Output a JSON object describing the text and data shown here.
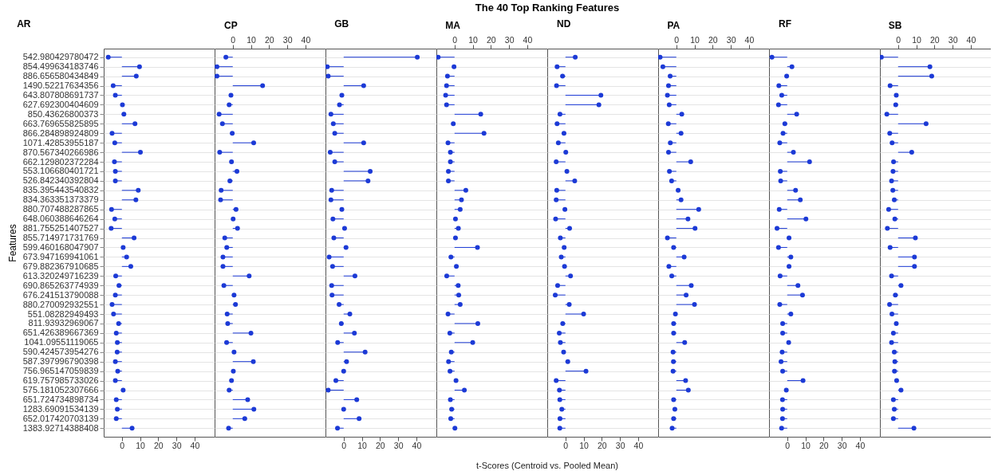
{
  "chart_data": [
    {
      "type": "lollipop",
      "orientation": "horizontal",
      "title": "AR",
      "ylabel": "Features",
      "annotations": [
        "The 40 Top Ranking Features"
      ],
      "grid": "y",
      "marker": "circle",
      "xlim": [
        -10,
        51
      ],
      "xticks": [
        0,
        10,
        20,
        30,
        40
      ],
      "categories": [
        "542.980429780472",
        "854.499634183746",
        "886.656580434849",
        "1490.52217634356",
        "643.807808691737",
        "627.692300404609",
        "850.43626800373",
        "663.769655825895",
        "866.284898924809",
        "1071.42853955187",
        "870.567340266986",
        "662.129802372284",
        "553.106680401721",
        "526.842340392804",
        "835.395443540832",
        "834.363351373379",
        "880.707488287865",
        "648.060388646264",
        "881.755251407527",
        "855.714971731769",
        "599.460168047907",
        "673.947169941061",
        "679.882367910685",
        "613.320249716239",
        "690.865263774939",
        "676.241513790088",
        "880.270092932551",
        "551.08282949493",
        "811.93932969067",
        "651.426389667369",
        "1041.09551119065",
        "590.424573954276",
        "587.397996790398",
        "756.965147059839",
        "619.757985733026",
        "575.181052307666",
        "651.724734898734",
        "1283.69091534139",
        "652.017420703139",
        "1383.92714388408"
      ],
      "series": [
        {
          "color": "#1c3ad6",
          "values": [
            -7.5,
            9.7,
            7.9,
            -4.8,
            -3.6,
            0.3,
            1.1,
            7.2,
            -5.4,
            -3.9,
            10.2,
            -4.1,
            -3.6,
            -3.6,
            9.0,
            7.7,
            -5.7,
            -3.9,
            -5.9,
            6.7,
            0.7,
            2.6,
            4.9,
            -3.4,
            -1.6,
            -3.6,
            -5.4,
            -4.6,
            -1.8,
            -3.1,
            -2.5,
            -2.6,
            -3.6,
            -2.3,
            -3.6,
            0.7,
            -3.1,
            -2.5,
            -3.1,
            5.6
          ]
        }
      ]
    },
    {
      "type": "lollipop",
      "orientation": "horizontal",
      "title": "CP",
      "grid": "y",
      "marker": "circle",
      "tick_labels": "x",
      "xlim": [
        -10,
        51
      ],
      "xticks": [
        0,
        10,
        20,
        30,
        40
      ],
      "categories": [
        "542.980429780472",
        "854.499634183746",
        "886.656580434849",
        "1490.52217634356",
        "643.807808691737",
        "627.692300404609",
        "850.43626800373",
        "663.769655825895",
        "866.284898924809",
        "1071.42853955187",
        "870.567340266986",
        "662.129802372284",
        "553.106680401721",
        "526.842340392804",
        "835.395443540832",
        "834.363351373379",
        "880.707488287865",
        "648.060388646264",
        "881.755251407527",
        "855.714971731769",
        "599.460168047907",
        "673.947169941061",
        "679.882367910685",
        "613.320249716239",
        "690.865263774939",
        "676.241513790088",
        "880.270092932551",
        "551.08282949493",
        "811.93932969067",
        "651.426389667369",
        "1041.09551119065",
        "590.424573954276",
        "587.397996790398",
        "756.965147059839",
        "619.757985733026",
        "575.181052307666",
        "651.724734898734",
        "1283.69091534139",
        "652.017420703139",
        "1383.92714388408"
      ],
      "series": [
        {
          "color": "#1c3ad6",
          "values": [
            -3.8,
            -8.7,
            -8.7,
            16.4,
            -1.0,
            -2.0,
            -7.5,
            -5.7,
            -0.3,
            11.5,
            -7.2,
            -0.7,
            2.3,
            -1.6,
            -6.4,
            -6.7,
            1.8,
            0.2,
            2.6,
            -4.4,
            -3.3,
            -5.4,
            -5.4,
            9.0,
            -4.9,
            0.7,
            1.5,
            -3.1,
            -2.8,
            10.0,
            -3.4,
            0.7,
            11.3,
            0.3,
            -0.7,
            -2.0,
            8.2,
            11.6,
            6.6,
            -2.3
          ]
        }
      ]
    },
    {
      "type": "lollipop",
      "orientation": "horizontal",
      "title": "GB",
      "grid": "y",
      "marker": "circle",
      "tick_labels": "x",
      "xlim": [
        -10,
        51
      ],
      "xticks": [
        0,
        10,
        20,
        30,
        40
      ],
      "categories": [
        "542.980429780472",
        "854.499634183746",
        "886.656580434849",
        "1490.52217634356",
        "643.807808691737",
        "627.692300404609",
        "850.43626800373",
        "663.769655825895",
        "866.284898924809",
        "1071.42853955187",
        "870.567340266986",
        "662.129802372284",
        "553.106680401721",
        "526.842340392804",
        "835.395443540832",
        "834.363351373379",
        "880.707488287865",
        "648.060388646264",
        "881.755251407527",
        "855.714971731769",
        "599.460168047907",
        "673.947169941061",
        "679.882367910685",
        "613.320249716239",
        "690.865263774939",
        "676.241513790088",
        "880.270092932551",
        "551.08282949493",
        "811.93932969067",
        "651.426389667369",
        "1041.09551119065",
        "590.424573954276",
        "587.397996790398",
        "756.965147059839",
        "619.757985733026",
        "575.181052307666",
        "651.724734898734",
        "1283.69091534139",
        "652.017420703139",
        "1383.92714388408"
      ],
      "series": [
        {
          "color": "#1c3ad6",
          "values": [
            40.5,
            -9.0,
            -8.5,
            11.0,
            -1.0,
            -2.3,
            -7.0,
            -5.7,
            -4.9,
            11.0,
            -7.4,
            -4.9,
            14.6,
            13.4,
            -6.6,
            -7.0,
            -1.0,
            -5.9,
            0.5,
            -5.4,
            1.3,
            -8.0,
            -6.1,
            6.2,
            -6.6,
            -6.4,
            -2.5,
            3.4,
            -1.3,
            5.9,
            -3.3,
            11.8,
            1.6,
            0,
            -4.3,
            -8.5,
            7.2,
            0,
            8.5,
            -3.4
          ]
        }
      ]
    },
    {
      "type": "lollipop",
      "orientation": "horizontal",
      "title": "MA",
      "xlabel": "t-Scores (Centroid vs. Pooled Mean)",
      "grid": "y",
      "marker": "circle",
      "tick_labels": "x",
      "xlim": [
        -10,
        51
      ],
      "xticks": [
        0,
        10,
        20,
        30,
        40
      ],
      "categories": [
        "542.980429780472",
        "854.499634183746",
        "886.656580434849",
        "1490.52217634356",
        "643.807808691737",
        "627.692300404609",
        "850.43626800373",
        "663.769655825895",
        "866.284898924809",
        "1071.42853955187",
        "870.567340266986",
        "662.129802372284",
        "553.106680401721",
        "526.842340392804",
        "835.395443540832",
        "834.363351373379",
        "880.707488287865",
        "648.060388646264",
        "881.755251407527",
        "855.714971731769",
        "599.460168047907",
        "673.947169941061",
        "679.882367910685",
        "613.320249716239",
        "690.865263774939",
        "676.241513790088",
        "880.270092932551",
        "551.08282949493",
        "811.93932969067",
        "651.426389667369",
        "1041.09551119065",
        "590.424573954276",
        "587.397996790398",
        "756.965147059839",
        "619.757985733026",
        "575.181052307666",
        "651.724734898734",
        "1283.69091534139",
        "652.017420703139",
        "1383.92714388408"
      ],
      "series": [
        {
          "color": "#1c3ad6",
          "values": [
            -9.0,
            -0.3,
            -3.9,
            -4.4,
            -4.9,
            -4.4,
            14.4,
            -0.7,
            16.2,
            -3.6,
            -2.3,
            -2.3,
            -3.4,
            -3.4,
            6.2,
            3.8,
            3.1,
            0.5,
            2.1,
            0.5,
            12.6,
            -2.0,
            1.0,
            -4.3,
            2.0,
            2.3,
            3.1,
            -3.6,
            12.8,
            -2.6,
            10.0,
            -1.8,
            -3.3,
            -2.5,
            0.8,
            5.4,
            -2.3,
            -1.6,
            -2.1,
            0.2
          ]
        }
      ]
    },
    {
      "type": "lollipop",
      "orientation": "horizontal",
      "title": "ND",
      "grid": "y",
      "marker": "circle",
      "tick_labels": "x",
      "xlim": [
        -10,
        51
      ],
      "xticks": [
        0,
        10,
        20,
        30,
        40
      ],
      "categories": [
        "542.980429780472",
        "854.499634183746",
        "886.656580434849",
        "1490.52217634356",
        "643.807808691737",
        "627.692300404609",
        "850.43626800373",
        "663.769655825895",
        "866.284898924809",
        "1071.42853955187",
        "870.567340266986",
        "662.129802372284",
        "553.106680401721",
        "526.842340392804",
        "835.395443540832",
        "834.363351373379",
        "880.707488287865",
        "648.060388646264",
        "881.755251407527",
        "855.714971731769",
        "599.460168047907",
        "673.947169941061",
        "679.882367910685",
        "613.320249716239",
        "690.865263774939",
        "676.241513790088",
        "880.270092932551",
        "551.08282949493",
        "811.93932969067",
        "651.426389667369",
        "1041.09551119065",
        "590.424573954276",
        "587.397996790398",
        "756.965147059839",
        "619.757985733026",
        "575.181052307666",
        "651.724734898734",
        "1283.69091534139",
        "652.017420703139",
        "1383.92714388408"
      ],
      "series": [
        {
          "color": "#1c3ad6",
          "values": [
            5.4,
            -4.6,
            -1.6,
            -4.9,
            19.5,
            18.4,
            -3.0,
            -4.6,
            -0.8,
            -3.9,
            0.2,
            -5.1,
            0.8,
            5.1,
            -4.8,
            -5.1,
            -0.3,
            -5.4,
            2.3,
            -2.8,
            -0.7,
            -2.3,
            -0.5,
            2.8,
            -4.3,
            -5.6,
            2.1,
            10.0,
            -1.5,
            -3.4,
            -2.8,
            -1.0,
            1.3,
            11.3,
            -5.1,
            -3.3,
            -3.1,
            -2.0,
            -3.0,
            -3.1
          ]
        }
      ]
    },
    {
      "type": "lollipop",
      "orientation": "horizontal",
      "title": "PA",
      "grid": "y",
      "marker": "circle",
      "tick_labels": "x",
      "xlim": [
        -10,
        51
      ],
      "xticks": [
        0,
        10,
        20,
        30,
        40
      ],
      "categories": [
        "542.980429780472",
        "854.499634183746",
        "886.656580434849",
        "1490.52217634356",
        "643.807808691737",
        "627.692300404609",
        "850.43626800373",
        "663.769655825895",
        "866.284898924809",
        "1071.42853955187",
        "870.567340266986",
        "662.129802372284",
        "553.106680401721",
        "526.842340392804",
        "835.395443540832",
        "834.363351373379",
        "880.707488287865",
        "648.060388646264",
        "881.755251407527",
        "855.714971731769",
        "599.460168047907",
        "673.947169941061",
        "679.882367910685",
        "613.320249716239",
        "690.865263774939",
        "676.241513790088",
        "880.270092932551",
        "551.08282949493",
        "811.93932969067",
        "651.426389667369",
        "1041.09551119065",
        "590.424573954276",
        "587.397996790398",
        "756.965147059839",
        "619.757985733026",
        "575.181052307666",
        "651.724734898734",
        "1283.69091534139",
        "652.017420703139",
        "1383.92714388408"
      ],
      "series": [
        {
          "color": "#1c3ad6",
          "values": [
            -8.9,
            -7.4,
            -3.4,
            -4.3,
            -4.9,
            -3.9,
            3.0,
            -4.4,
            2.6,
            -3.3,
            -4.3,
            7.9,
            -3.8,
            -2.6,
            1.0,
            2.6,
            12.3,
            6.4,
            10.3,
            -4.9,
            -1.5,
            4.3,
            -4.1,
            -2.5,
            8.2,
            5.4,
            10.0,
            -0.5,
            -1.5,
            -1.5,
            4.6,
            -1.8,
            -1.6,
            -1.8,
            5.1,
            6.6,
            -1.5,
            -0.8,
            -1.5,
            -2.3
          ]
        }
      ]
    },
    {
      "type": "lollipop",
      "orientation": "horizontal",
      "title": "RF",
      "grid": "y",
      "marker": "circle",
      "tick_labels": "x",
      "xlim": [
        -10,
        51
      ],
      "xticks": [
        0,
        10,
        20,
        30,
        40
      ],
      "categories": [
        "542.980429780472",
        "854.499634183746",
        "886.656580434849",
        "1490.52217634356",
        "643.807808691737",
        "627.692300404609",
        "850.43626800373",
        "663.769655825895",
        "866.284898924809",
        "1071.42853955187",
        "870.567340266986",
        "662.129802372284",
        "553.106680401721",
        "526.842340392804",
        "835.395443540832",
        "834.363351373379",
        "880.707488287865",
        "648.060388646264",
        "881.755251407527",
        "855.714971731769",
        "599.460168047907",
        "673.947169941061",
        "679.882367910685",
        "613.320249716239",
        "690.865263774939",
        "676.241513790088",
        "880.270092932551",
        "551.08282949493",
        "811.93932969067",
        "651.426389667369",
        "1041.09551119065",
        "590.424573954276",
        "587.397996790398",
        "756.965147059839",
        "619.757985733026",
        "575.181052307666",
        "651.724734898734",
        "1283.69091534139",
        "652.017420703139",
        "1383.92714388408"
      ],
      "series": [
        {
          "color": "#1c3ad6",
          "values": [
            -8.4,
            2.6,
            -0.3,
            -4.6,
            -3.0,
            -4.8,
            5.2,
            -1.3,
            -2.3,
            -4.1,
            3.4,
            12.3,
            -3.8,
            -3.6,
            4.6,
            7.2,
            -4.4,
            10.3,
            -5.6,
            1.0,
            -4.8,
            2.0,
            1.0,
            -3.9,
            5.9,
            8.4,
            -4.1,
            2.0,
            -2.5,
            -2.5,
            0.8,
            -2.8,
            -3.4,
            -2.5,
            8.7,
            -0.5,
            -2.6,
            -2.5,
            -2.6,
            -3.1
          ]
        }
      ]
    },
    {
      "type": "lollipop",
      "orientation": "horizontal",
      "title": "SB",
      "grid": "y",
      "marker": "circle",
      "tick_labels": "x",
      "xlim": [
        -10,
        51
      ],
      "xticks": [
        0,
        10,
        20,
        30,
        40
      ],
      "categories": [
        "542.980429780472",
        "854.499634183746",
        "886.656580434849",
        "1490.52217634356",
        "643.807808691737",
        "627.692300404609",
        "850.43626800373",
        "663.769655825895",
        "866.284898924809",
        "1071.42853955187",
        "870.567340266986",
        "662.129802372284",
        "553.106680401721",
        "526.842340392804",
        "835.395443540832",
        "834.363351373379",
        "880.707488287865",
        "648.060388646264",
        "881.755251407527",
        "855.714971731769",
        "599.460168047907",
        "673.947169941061",
        "679.882367910685",
        "613.320249716239",
        "690.865263774939",
        "676.241513790088",
        "880.270092932551",
        "551.08282949493",
        "811.93932969067",
        "651.426389667369",
        "1041.09551119065",
        "590.424573954276",
        "587.397996790398",
        "756.965147059839",
        "619.757985733026",
        "575.181052307666",
        "651.724734898734",
        "1283.69091534139",
        "652.017420703139",
        "1383.92714388408"
      ],
      "series": [
        {
          "color": "#1c3ad6",
          "values": [
            -9.2,
            17.5,
            18.5,
            -4.4,
            -1.0,
            -1.3,
            -6.2,
            15.4,
            -4.6,
            -3.3,
            7.5,
            -2.5,
            -2.8,
            -3.6,
            -2.9,
            -2.1,
            -5.2,
            -1.8,
            -5.9,
            9.5,
            -4.4,
            9.0,
            9.0,
            -3.6,
            1.6,
            -1.5,
            -4.7,
            -3.4,
            -1.0,
            -2.6,
            -3.6,
            -2.1,
            -1.8,
            -2.0,
            -0.8,
            1.6,
            -2.6,
            -2.1,
            -2.6,
            8.7
          ]
        }
      ]
    }
  ]
}
